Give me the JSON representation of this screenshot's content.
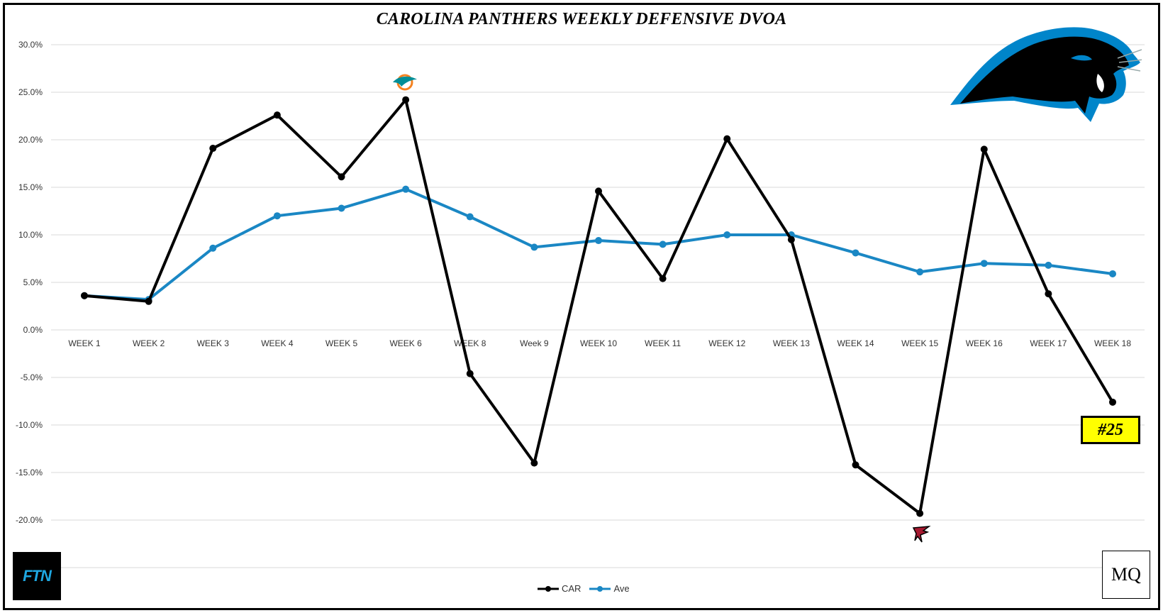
{
  "chart_data": {
    "type": "line",
    "title": "CAROLINA PANTHERS WEEKLY DEFENSIVE DVOA",
    "categories": [
      "WEEK 1",
      "WEEK 2",
      "WEEK 3",
      "WEEK 4",
      "WEEK 5",
      "WEEK 6",
      "WEEK 8",
      "Week 9",
      "WEEK 10",
      "WEEK 11",
      "WEEK 12",
      "WEEK 13",
      "WEEK 14",
      "WEEK 15",
      "WEEK 16",
      "WEEK 17",
      "WEEK 18"
    ],
    "series": [
      {
        "name": "CAR",
        "color": "#000000",
        "values": [
          3.6,
          3.0,
          19.1,
          22.6,
          16.1,
          24.2,
          -4.6,
          -14.0,
          14.6,
          5.4,
          20.1,
          9.5,
          -14.2,
          -19.3,
          19.0,
          3.8,
          -7.6
        ]
      },
      {
        "name": "Ave",
        "color": "#1a87c4",
        "values": [
          3.6,
          3.2,
          8.6,
          12.0,
          12.8,
          14.8,
          11.9,
          8.7,
          9.4,
          9.0,
          10.0,
          10.0,
          8.1,
          6.1,
          7.0,
          6.8,
          5.9
        ]
      }
    ],
    "yticks": [
      "30.0%",
      "25.0%",
      "20.0%",
      "15.0%",
      "10.0%",
      "5.0%",
      "0.0%",
      "-5.0%",
      "-10.0%",
      "-15.0%",
      "-20.0%"
    ],
    "ylim": [
      -25,
      30
    ],
    "xlabel": "",
    "ylabel": "",
    "grid": true,
    "legend": "bottom-center"
  },
  "annotations": {
    "rank_badge": "#25",
    "ftn_logo": "FTN",
    "mq_logo": "MQ",
    "team_logo": "panther-logo",
    "week6_opponent_icon": "dolphins-icon",
    "week15_opponent_icon": "falcons-icon"
  },
  "colors": {
    "car_line": "#000000",
    "ave_line": "#1a87c4",
    "badge_bg": "#ffff00",
    "grid": "#d9d9d9",
    "panther_blue": "#0085ca"
  }
}
